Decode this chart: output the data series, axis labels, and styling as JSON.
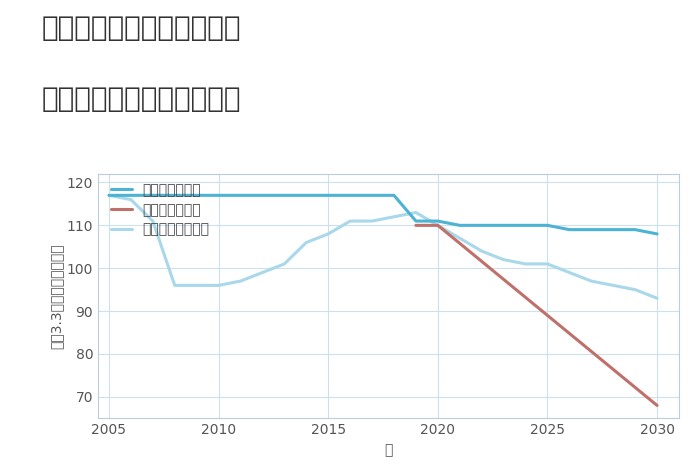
{
  "title_line1": "奈良県吉野郡下市町仔邑の",
  "title_line2": "中古マンションの価格推移",
  "xlabel": "年",
  "ylabel": "坪（3.3㎡）単価（万円）",
  "ylim": [
    65,
    122
  ],
  "xlim": [
    2004.5,
    2031
  ],
  "yticks": [
    70,
    80,
    90,
    100,
    110,
    120
  ],
  "xticks": [
    2005,
    2010,
    2015,
    2020,
    2025,
    2030
  ],
  "good_scenario": {
    "label": "グッドシナリオ",
    "color": "#4db3d4",
    "x": [
      2005,
      2006,
      2007,
      2008,
      2009,
      2010,
      2011,
      2012,
      2013,
      2014,
      2015,
      2016,
      2017,
      2018,
      2019,
      2020,
      2021,
      2022,
      2023,
      2024,
      2025,
      2026,
      2027,
      2028,
      2029,
      2030
    ],
    "y": [
      117,
      117,
      117,
      117,
      117,
      117,
      117,
      117,
      117,
      117,
      117,
      117,
      117,
      117,
      111,
      111,
      110,
      110,
      110,
      110,
      110,
      109,
      109,
      109,
      109,
      108
    ]
  },
  "bad_scenario": {
    "label": "バッドシナリオ",
    "color": "#c0706a",
    "x": [
      2019,
      2020,
      2030
    ],
    "y": [
      110,
      110,
      68
    ]
  },
  "normal_scenario": {
    "label": "ノーマルシナリオ",
    "color": "#a8d8ea",
    "x": [
      2005,
      2006,
      2007,
      2008,
      2009,
      2010,
      2011,
      2012,
      2013,
      2014,
      2015,
      2016,
      2017,
      2018,
      2019,
      2020,
      2021,
      2022,
      2023,
      2024,
      2025,
      2026,
      2027,
      2028,
      2029,
      2030
    ],
    "y": [
      117,
      116,
      111,
      96,
      96,
      96,
      97,
      99,
      101,
      106,
      108,
      111,
      111,
      112,
      113,
      110,
      107,
      104,
      102,
      101,
      101,
      99,
      97,
      96,
      95,
      93
    ]
  },
  "background_color": "#ffffff",
  "grid_color": "#cce0ee",
  "title_fontsize": 20,
  "axis_label_fontsize": 10,
  "tick_fontsize": 10,
  "legend_fontsize": 10
}
